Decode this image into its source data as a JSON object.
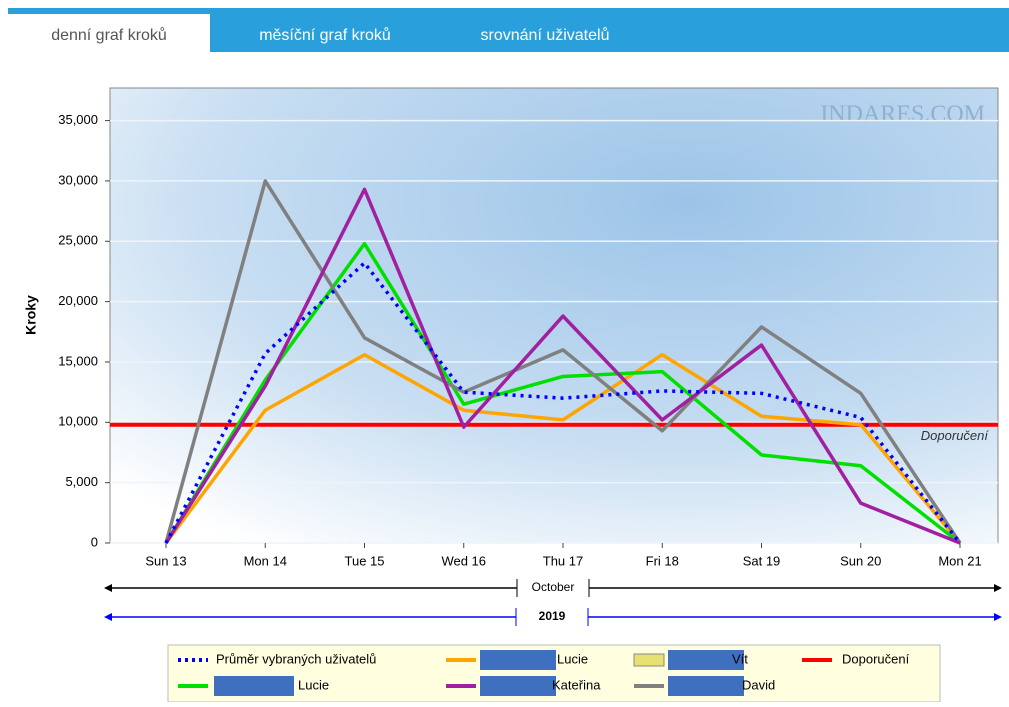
{
  "tabs": [
    "denní graf kroků",
    "měsíční graf kroků",
    "srovnání uživatelů"
  ],
  "chart_data": {
    "type": "line",
    "watermark": "INDARES.COM",
    "y_label": "Kroky",
    "categories": [
      "Sun 13",
      "Mon 14",
      "Tue 15",
      "Wed 16",
      "Thu 17",
      "Fri 18",
      "Sat 19",
      "Sun 20",
      "Mon 21"
    ],
    "x_groups": [
      {
        "label": "October",
        "color": "#000000"
      },
      {
        "label": "2019",
        "color": "#0000ff"
      }
    ],
    "ylim": [
      0,
      37700
    ],
    "yticks": [
      0,
      {
        "value": 5000,
        "label": "5,000"
      },
      {
        "value": 10000,
        "label": "10,000"
      },
      {
        "value": 15000,
        "label": "15,000"
      },
      {
        "value": 20000,
        "label": "20,000"
      },
      {
        "value": 25000,
        "label": "25,000"
      },
      {
        "value": 30000,
        "label": "30,000"
      },
      {
        "value": 35000,
        "label": "35,000"
      }
    ],
    "grid": true,
    "series": [
      {
        "name": "Průměr vybraných uživatelů",
        "color": "#0000ff",
        "line_style": "dotted",
        "values": [
          0,
          15700,
          23200,
          12500,
          12000,
          12600,
          12400,
          10400,
          0
        ]
      },
      {
        "name": "Lucie",
        "color": "#ffa500",
        "values": [
          0,
          11000,
          15600,
          11000,
          10200,
          15600,
          10500,
          9800,
          0
        ]
      },
      {
        "name": "Vít",
        "color": "#e8e070",
        "legend_shape": "box",
        "values": [
          null,
          null,
          null,
          null,
          null,
          null,
          null,
          null,
          null
        ]
      },
      {
        "name": "Lucie",
        "color": "#00e000",
        "values": [
          0,
          13500,
          24800,
          11500,
          13800,
          14200,
          7300,
          6400,
          0
        ]
      },
      {
        "name": "Kateřina",
        "color": "#a020a0",
        "values": [
          0,
          13000,
          29300,
          9600,
          18800,
          10200,
          16400,
          3300,
          0
        ]
      },
      {
        "name": "David",
        "color": "#808080",
        "values": [
          0,
          30000,
          17000,
          12500,
          16000,
          9300,
          17900,
          12400,
          0
        ]
      }
    ],
    "reference_line": {
      "name": "Doporučení",
      "value": 9800,
      "color": "#ff0000"
    }
  }
}
